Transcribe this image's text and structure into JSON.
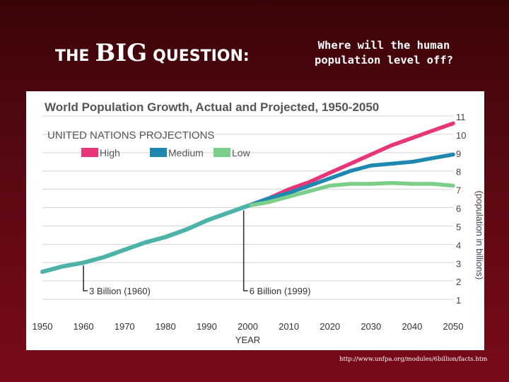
{
  "slide": {
    "title_prefix": "THE",
    "title_big": "BIG",
    "title_suffix": "QUESTION:",
    "question": "Where will the human population level off?",
    "source": "http://www.unfpa.org/modules/6billion/facts.htm"
  },
  "chart_data": {
    "type": "line",
    "title": "World Population Growth, Actual and Projected, 1950-2050",
    "subtitle": "UNITED NATIONS PROJECTIONS",
    "xlabel": "YEAR",
    "ylabel": "(population in billions)",
    "xlim": [
      1950,
      2050
    ],
    "ylim": [
      0,
      11
    ],
    "x_ticks": [
      "1950",
      "1960",
      "1970",
      "1980",
      "1990",
      "2000",
      "2010",
      "2020",
      "2030",
      "2040",
      "2050"
    ],
    "y_ticks": [
      "1",
      "2",
      "3",
      "4",
      "5",
      "6",
      "7",
      "8",
      "9",
      "10",
      "11"
    ],
    "grid": true,
    "legend_position": "top-left",
    "actual": {
      "color": "#4db3a8",
      "x": [
        1950,
        1955,
        1960,
        1965,
        1970,
        1975,
        1980,
        1985,
        1990,
        1995,
        2000
      ],
      "values": [
        2.5,
        2.8,
        3.0,
        3.3,
        3.7,
        4.1,
        4.4,
        4.8,
        5.3,
        5.7,
        6.1
      ]
    },
    "series": [
      {
        "name": "High",
        "color": "#e8357a",
        "x": [
          2000,
          2005,
          2010,
          2015,
          2020,
          2025,
          2030,
          2035,
          2040,
          2045,
          2050
        ],
        "values": [
          6.1,
          6.5,
          7.0,
          7.4,
          7.9,
          8.4,
          8.9,
          9.4,
          9.8,
          10.2,
          10.6
        ]
      },
      {
        "name": "Medium",
        "color": "#1f88b0",
        "x": [
          2000,
          2005,
          2010,
          2015,
          2020,
          2025,
          2030,
          2035,
          2040,
          2045,
          2050
        ],
        "values": [
          6.1,
          6.5,
          6.8,
          7.2,
          7.6,
          8.0,
          8.3,
          8.4,
          8.5,
          8.7,
          8.9
        ]
      },
      {
        "name": "Low",
        "color": "#7ccf8a",
        "x": [
          2000,
          2005,
          2010,
          2015,
          2020,
          2025,
          2030,
          2035,
          2040,
          2045,
          2050
        ],
        "values": [
          6.1,
          6.3,
          6.6,
          6.9,
          7.2,
          7.3,
          7.3,
          7.35,
          7.3,
          7.3,
          7.2
        ]
      }
    ],
    "annotations": [
      {
        "text": "3 Billion (1960)",
        "x": 1960,
        "y": 3.0
      },
      {
        "text": "6 Billion (1999)",
        "x": 1999,
        "y": 6.0
      }
    ]
  }
}
